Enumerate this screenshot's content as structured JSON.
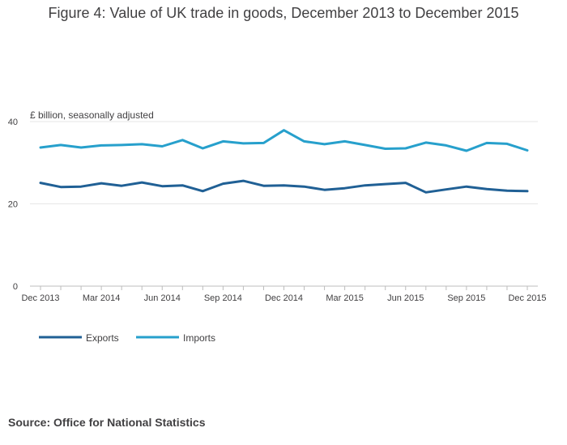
{
  "chart_data": {
    "type": "line",
    "title": "Figure 4: Value of UK trade in goods, December 2013 to December 2015",
    "ylabel": "£ billion, seasonally adjusted",
    "xlabel": "",
    "ylim": [
      0,
      40
    ],
    "yticks": [
      0,
      20,
      40
    ],
    "grid": true,
    "legend_position": "bottom-left",
    "x": [
      "Dec 2013",
      "Jan 2014",
      "Feb 2014",
      "Mar 2014",
      "Apr 2014",
      "May 2014",
      "Jun 2014",
      "Jul 2014",
      "Aug 2014",
      "Sep 2014",
      "Oct 2014",
      "Nov 2014",
      "Dec 2014",
      "Jan 2015",
      "Feb 2015",
      "Mar 2015",
      "Apr 2015",
      "May 2015",
      "Jun 2015",
      "Jul 2015",
      "Aug 2015",
      "Sep 2015",
      "Oct 2015",
      "Nov 2015",
      "Dec 2015"
    ],
    "xtick_labels": [
      "Dec 2013",
      "Mar 2014",
      "Jun 2014",
      "Sep 2014",
      "Dec 2014",
      "Mar 2015",
      "Jun 2015",
      "Sep 2015",
      "Dec 2015"
    ],
    "series": [
      {
        "name": "Exports",
        "color": "#206095",
        "values": [
          25.1,
          24.1,
          24.2,
          25.0,
          24.4,
          25.2,
          24.3,
          24.5,
          23.1,
          24.9,
          25.6,
          24.4,
          24.5,
          24.2,
          23.4,
          23.8,
          24.5,
          24.8,
          25.1,
          22.8,
          23.5,
          24.2,
          23.6,
          23.2,
          23.1
        ]
      },
      {
        "name": "Imports",
        "color": "#27A0CC",
        "values": [
          33.7,
          34.3,
          33.7,
          34.2,
          34.3,
          34.5,
          34.0,
          35.5,
          33.5,
          35.2,
          34.7,
          34.8,
          37.9,
          35.2,
          34.5,
          35.2,
          34.3,
          33.4,
          33.5,
          34.9,
          34.2,
          32.9,
          34.8,
          34.6,
          33.0
        ]
      }
    ]
  },
  "source": "Source: Office for National Statistics",
  "colors": {
    "text": "#414042",
    "grid": "#e6e6e6",
    "axis": "#bcbcbc"
  }
}
